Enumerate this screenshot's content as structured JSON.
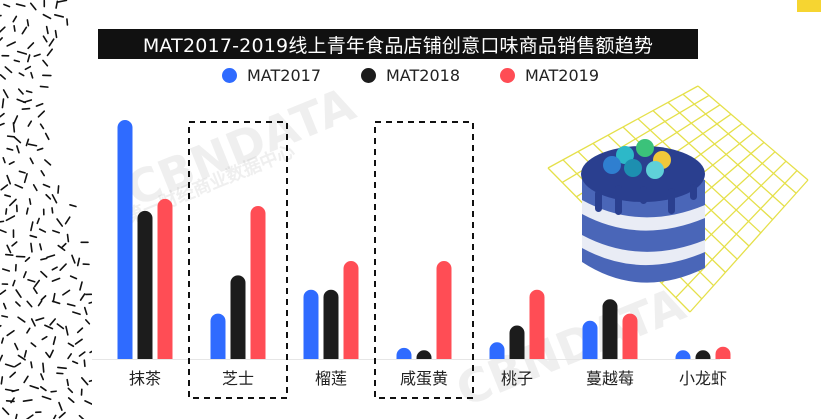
{
  "chart_data": {
    "type": "bar",
    "title": "MAT2017-2019线上青年食品店铺创意口味商品销售额趋势",
    "categories": [
      "抹茶",
      "芝士",
      "榴莲",
      "咸蛋黄",
      "桃子",
      "蔓越莓",
      "小龙虾"
    ],
    "series": [
      {
        "name": "MAT2017",
        "color": "#2f6bff",
        "values": [
          100,
          19,
          29,
          3,
          7,
          16,
          1
        ]
      },
      {
        "name": "MAT2018",
        "color": "#1c1c1c",
        "values": [
          62,
          35,
          29,
          1,
          14,
          25,
          1
        ]
      },
      {
        "name": "MAT2019",
        "color": "#ff4d55",
        "values": [
          67,
          64,
          41,
          41,
          29,
          19,
          4
        ]
      }
    ],
    "highlighted_categories": [
      "芝士",
      "咸蛋黄"
    ],
    "ylim": [
      0,
      100
    ],
    "grid": false,
    "legend_position": "top-center"
  },
  "watermark": {
    "brand": "CBNDATA",
    "caption": "第一财经商业数据中心"
  },
  "colors": {
    "accent_yellow": "#f6d531",
    "title_bg": "#111111"
  }
}
